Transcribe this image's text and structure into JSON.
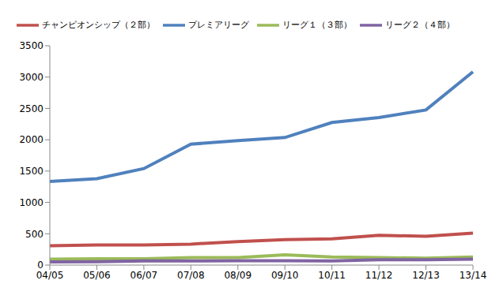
{
  "chart_data": {
    "type": "line",
    "categories": [
      "04/05",
      "05/06",
      "06/07",
      "07/08",
      "08/09",
      "09/10",
      "10/11",
      "11/12",
      "12/13",
      "13/14"
    ],
    "series": [
      {
        "name": "プレミアリーグ",
        "color": "#4f81bd",
        "values": [
          1335,
          1380,
          1540,
          1930,
          1985,
          2035,
          2275,
          2355,
          2475,
          3085
        ]
      },
      {
        "name": "チャンピオンシップ（２部）",
        "color": "#c0504d",
        "values": [
          310,
          320,
          320,
          335,
          375,
          405,
          420,
          475,
          460,
          510
        ]
      },
      {
        "name": "リーグ１（３部）",
        "color": "#9bbb59",
        "values": [
          95,
          100,
          100,
          120,
          120,
          165,
          130,
          120,
          110,
          130
        ]
      },
      {
        "name": "リーグ２（４部）",
        "color": "#8064a2",
        "values": [
          50,
          55,
          65,
          65,
          70,
          70,
          65,
          85,
          85,
          95
        ]
      }
    ],
    "ylim": [
      0,
      3500
    ],
    "yticks": [
      0,
      500,
      1000,
      1500,
      2000,
      2500,
      3000,
      3500
    ],
    "grid": false,
    "legend": "top"
  }
}
